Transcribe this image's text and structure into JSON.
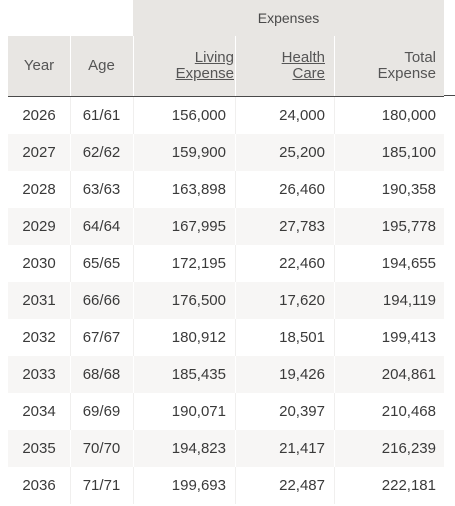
{
  "table": {
    "group_header": "Expenses",
    "columns": {
      "year": "Year",
      "age": "Age",
      "living_1": "Living",
      "living_2": "Expense",
      "health_1": "Health",
      "health_2": "Care",
      "total_1": "Total",
      "total_2": "Expense"
    },
    "rows": [
      {
        "year": "2026",
        "age": "61/61",
        "living": "156,000",
        "health": "24,000",
        "total": "180,000"
      },
      {
        "year": "2027",
        "age": "62/62",
        "living": "159,900",
        "health": "25,200",
        "total": "185,100"
      },
      {
        "year": "2028",
        "age": "63/63",
        "living": "163,898",
        "health": "26,460",
        "total": "190,358"
      },
      {
        "year": "2029",
        "age": "64/64",
        "living": "167,995",
        "health": "27,783",
        "total": "195,778"
      },
      {
        "year": "2030",
        "age": "65/65",
        "living": "172,195",
        "health": "22,460",
        "total": "194,655"
      },
      {
        "year": "2031",
        "age": "66/66",
        "living": "176,500",
        "health": "17,620",
        "total": "194,119"
      },
      {
        "year": "2032",
        "age": "67/67",
        "living": "180,912",
        "health": "18,501",
        "total": "199,413"
      },
      {
        "year": "2033",
        "age": "68/68",
        "living": "185,435",
        "health": "19,426",
        "total": "204,861"
      },
      {
        "year": "2034",
        "age": "69/69",
        "living": "190,071",
        "health": "20,397",
        "total": "210,468"
      },
      {
        "year": "2035",
        "age": "70/70",
        "living": "194,823",
        "health": "21,417",
        "total": "216,239"
      },
      {
        "year": "2036",
        "age": "71/71",
        "living": "199,693",
        "health": "22,487",
        "total": "222,181"
      }
    ]
  }
}
